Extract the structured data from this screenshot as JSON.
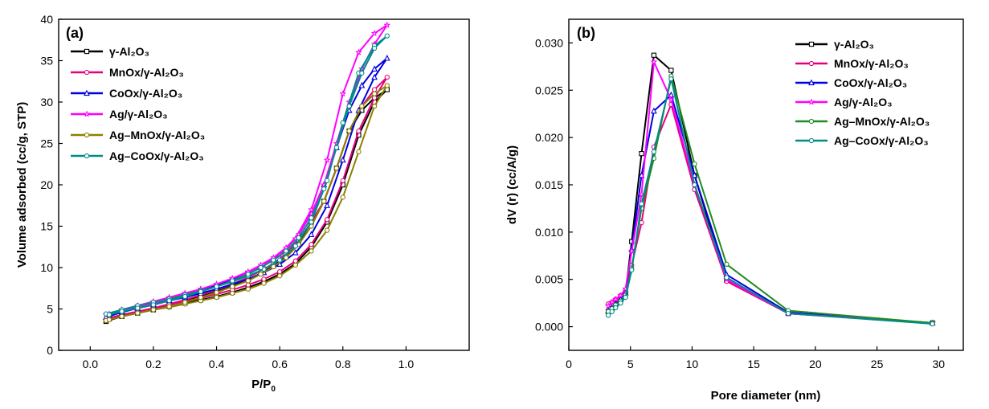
{
  "chart_data": [
    {
      "type": "line",
      "panel_label": "(a)",
      "xlabel": "P/P",
      "xlabel_sub": "0",
      "ylabel": "Volume adsorbed (cc/g, STP)",
      "xlim": [
        -0.1,
        1.2
      ],
      "ylim": [
        0,
        40
      ],
      "xticks": [
        0.0,
        0.2,
        0.4,
        0.6,
        0.8,
        1.0
      ],
      "xtick_labels": [
        "0.0",
        "0.2",
        "0.4",
        "0.6",
        "0.8",
        "1.0"
      ],
      "yticks": [
        0,
        5,
        10,
        15,
        20,
        25,
        30,
        35,
        40
      ],
      "ytick_labels": [
        "0",
        "5",
        "10",
        "15",
        "20",
        "25",
        "30",
        "35",
        "40"
      ],
      "legend_position": "top-left",
      "series": [
        {
          "name": "γ-Al₂O₃",
          "color": "#000000",
          "marker": "square",
          "x": [
            0.05,
            0.1,
            0.15,
            0.2,
            0.25,
            0.3,
            0.35,
            0.4,
            0.45,
            0.5,
            0.55,
            0.6,
            0.65,
            0.7,
            0.75,
            0.8,
            0.85,
            0.9,
            0.94,
            0.9,
            0.86,
            0.82,
            0.78,
            0.74,
            0.7,
            0.66,
            0.62,
            0.58,
            0.54,
            0.5,
            0.45,
            0.4,
            0.35,
            0.3,
            0.25,
            0.2,
            0.15,
            0.1,
            0.06
          ],
          "y": [
            3.5,
            4.1,
            4.5,
            4.9,
            5.3,
            5.7,
            6.1,
            6.5,
            7.0,
            7.6,
            8.3,
            9.2,
            10.5,
            12.5,
            15.5,
            20.0,
            26.0,
            30.0,
            31.5,
            30.5,
            29.0,
            26.5,
            22.0,
            18.0,
            15.5,
            13.0,
            11.3,
            10.2,
            9.3,
            8.5,
            7.8,
            7.1,
            6.5,
            5.9,
            5.4,
            5.0,
            4.6,
            4.2,
            3.8
          ]
        },
        {
          "name": "MnOx/γ-Al₂O₃",
          "color": "#e6007e",
          "marker": "circle",
          "x": [
            0.05,
            0.1,
            0.15,
            0.2,
            0.25,
            0.3,
            0.35,
            0.4,
            0.45,
            0.5,
            0.55,
            0.6,
            0.65,
            0.7,
            0.75,
            0.8,
            0.85,
            0.9,
            0.94,
            0.9,
            0.86,
            0.82,
            0.78,
            0.74,
            0.7,
            0.66,
            0.62,
            0.58,
            0.54,
            0.5,
            0.45,
            0.4,
            0.35,
            0.3,
            0.25,
            0.2,
            0.15,
            0.1,
            0.06
          ],
          "y": [
            3.6,
            4.2,
            4.7,
            5.1,
            5.5,
            5.9,
            6.3,
            6.8,
            7.3,
            7.9,
            8.6,
            9.5,
            10.8,
            12.8,
            15.8,
            20.5,
            26.5,
            30.5,
            33.0,
            31.5,
            29.5,
            26.5,
            22.0,
            18.0,
            15.5,
            13.3,
            11.7,
            10.5,
            9.6,
            8.8,
            8.0,
            7.3,
            6.7,
            6.1,
            5.6,
            5.1,
            4.7,
            4.3,
            3.9
          ]
        },
        {
          "name": "CoOx/γ-Al₂O₃",
          "color": "#0000e0",
          "marker": "triangle",
          "x": [
            0.05,
            0.1,
            0.15,
            0.2,
            0.25,
            0.3,
            0.35,
            0.4,
            0.45,
            0.5,
            0.55,
            0.6,
            0.65,
            0.7,
            0.75,
            0.8,
            0.85,
            0.9,
            0.94,
            0.9,
            0.86,
            0.82,
            0.78,
            0.74,
            0.7,
            0.66,
            0.62,
            0.58,
            0.54,
            0.5,
            0.45,
            0.4,
            0.35,
            0.3,
            0.25,
            0.2,
            0.15,
            0.1,
            0.06
          ],
          "y": [
            4.0,
            4.6,
            5.1,
            5.5,
            6.0,
            6.4,
            6.9,
            7.4,
            8.0,
            8.6,
            9.4,
            10.4,
            11.8,
            14.0,
            17.5,
            23.0,
            29.0,
            33.0,
            35.3,
            34.0,
            32.0,
            29.0,
            24.5,
            20.0,
            16.5,
            14.0,
            12.3,
            11.1,
            10.2,
            9.4,
            8.6,
            7.9,
            7.2,
            6.6,
            6.1,
            5.6,
            5.1,
            4.7,
            4.3
          ]
        },
        {
          "name": "Ag/γ-Al₂O₃",
          "color": "#ff00ff",
          "marker": "star",
          "x": [
            0.05,
            0.1,
            0.15,
            0.2,
            0.25,
            0.3,
            0.35,
            0.4,
            0.45,
            0.5,
            0.55,
            0.6,
            0.65,
            0.7,
            0.75,
            0.8,
            0.85,
            0.9,
            0.94,
            0.9,
            0.86,
            0.82,
            0.78,
            0.74,
            0.7,
            0.66,
            0.62,
            0.58,
            0.54,
            0.5,
            0.45,
            0.4,
            0.35,
            0.3,
            0.25,
            0.2,
            0.15,
            0.1,
            0.06
          ],
          "y": [
            4.3,
            4.9,
            5.4,
            5.9,
            6.4,
            6.9,
            7.4,
            8.0,
            8.7,
            9.4,
            10.3,
            11.5,
            13.5,
            17.0,
            23.0,
            31.0,
            36.0,
            38.3,
            39.3,
            37.0,
            34.0,
            30.0,
            25.0,
            20.0,
            16.5,
            14.0,
            12.4,
            11.2,
            10.3,
            9.5,
            8.7,
            8.0,
            7.4,
            6.8,
            6.2,
            5.7,
            5.2,
            4.8,
            4.4
          ]
        },
        {
          "name": "Ag–MnOx/γ-Al₂O₃",
          "color": "#8b8000",
          "marker": "circle",
          "x": [
            0.05,
            0.1,
            0.15,
            0.2,
            0.25,
            0.3,
            0.35,
            0.4,
            0.45,
            0.5,
            0.55,
            0.6,
            0.65,
            0.7,
            0.75,
            0.8,
            0.85,
            0.9,
            0.94,
            0.9,
            0.86,
            0.82,
            0.78,
            0.74,
            0.7,
            0.66,
            0.62,
            0.58,
            0.54,
            0.5,
            0.45,
            0.4,
            0.35,
            0.3,
            0.25,
            0.2,
            0.15,
            0.1,
            0.06
          ],
          "y": [
            3.6,
            4.1,
            4.5,
            4.9,
            5.2,
            5.6,
            6.0,
            6.4,
            6.9,
            7.4,
            8.1,
            9.0,
            10.3,
            12.0,
            14.5,
            18.5,
            24.0,
            29.5,
            32.0,
            31.0,
            29.5,
            26.5,
            22.0,
            18.0,
            15.0,
            12.8,
            11.2,
            10.1,
            9.2,
            8.4,
            7.7,
            7.0,
            6.4,
            5.8,
            5.3,
            4.9,
            4.5,
            4.1,
            3.7
          ]
        },
        {
          "name": "Ag–CoOx/γ-Al₂O₃",
          "color": "#008b8b",
          "marker": "circle",
          "x": [
            0.05,
            0.1,
            0.15,
            0.2,
            0.25,
            0.3,
            0.35,
            0.4,
            0.45,
            0.5,
            0.55,
            0.6,
            0.65,
            0.7,
            0.75,
            0.8,
            0.85,
            0.9,
            0.94,
            0.9,
            0.86,
            0.82,
            0.78,
            0.74,
            0.7,
            0.66,
            0.62,
            0.58,
            0.54,
            0.5,
            0.45,
            0.4,
            0.35,
            0.3,
            0.25,
            0.2,
            0.15,
            0.1,
            0.06
          ],
          "y": [
            4.4,
            4.9,
            5.4,
            5.8,
            6.2,
            6.7,
            7.2,
            7.7,
            8.3,
            9.0,
            9.8,
            10.9,
            12.6,
            15.5,
            20.5,
            27.5,
            33.5,
            36.8,
            38.0,
            36.5,
            33.5,
            29.5,
            24.5,
            19.5,
            16.0,
            13.6,
            12.0,
            10.9,
            10.0,
            9.2,
            8.4,
            7.7,
            7.1,
            6.5,
            6.0,
            5.5,
            5.1,
            4.7,
            4.3
          ]
        }
      ]
    },
    {
      "type": "line",
      "panel_label": "(b)",
      "xlabel": "Pore diameter (nm)",
      "ylabel": "dV (r) (cc/A/g)",
      "xlim": [
        0,
        32
      ],
      "ylim": [
        -0.0025,
        0.0325
      ],
      "xticks": [
        0,
        5,
        10,
        15,
        20,
        25,
        30
      ],
      "xtick_labels": [
        "0",
        "5",
        "10",
        "15",
        "20",
        "25",
        "30"
      ],
      "yticks": [
        0.0,
        0.005,
        0.01,
        0.015,
        0.02,
        0.025,
        0.03
      ],
      "ytick_labels": [
        "0.000",
        "0.005",
        "0.010",
        "0.015",
        "0.020",
        "0.025",
        "0.030"
      ],
      "legend_position": "top-right",
      "series": [
        {
          "name": "γ-Al₂O₃",
          "color": "#000000",
          "marker": "square",
          "x": [
            3.2,
            3.5,
            3.8,
            4.2,
            4.6,
            5.1,
            5.9,
            6.9,
            8.3,
            10.2,
            12.8,
            17.8,
            29.5
          ],
          "y": [
            0.0016,
            0.0019,
            0.0024,
            0.0029,
            0.0036,
            0.009,
            0.0183,
            0.0287,
            0.0271,
            0.016,
            0.0049,
            0.0014,
            0.0004
          ]
        },
        {
          "name": "MnOx/γ-Al₂O₃",
          "color": "#e6007e",
          "marker": "circle",
          "x": [
            3.2,
            3.5,
            3.8,
            4.2,
            4.6,
            5.1,
            5.9,
            6.9,
            8.3,
            10.2,
            12.8,
            17.8,
            29.5
          ],
          "y": [
            0.0024,
            0.0026,
            0.0029,
            0.0033,
            0.0038,
            0.0065,
            0.011,
            0.019,
            0.0235,
            0.0145,
            0.0048,
            0.0014,
            0.0004
          ]
        },
        {
          "name": "CoOx/γ-Al₂O₃",
          "color": "#0000e0",
          "marker": "triangle",
          "x": [
            3.2,
            3.5,
            3.8,
            4.2,
            4.6,
            5.1,
            5.9,
            6.9,
            8.3,
            10.2,
            12.8,
            17.8,
            29.5
          ],
          "y": [
            0.0017,
            0.002,
            0.0024,
            0.0029,
            0.0036,
            0.0082,
            0.016,
            0.0228,
            0.0245,
            0.016,
            0.0055,
            0.0015,
            0.0004
          ]
        },
        {
          "name": "Ag/γ-Al₂O₃",
          "color": "#ff00ff",
          "marker": "star",
          "x": [
            3.2,
            3.5,
            3.8,
            4.2,
            4.6,
            5.1,
            5.9,
            6.9,
            8.3,
            10.2,
            12.8,
            17.8,
            29.5
          ],
          "y": [
            0.0022,
            0.0026,
            0.0029,
            0.0033,
            0.004,
            0.008,
            0.014,
            0.028,
            0.024,
            0.015,
            0.005,
            0.0014,
            0.0004
          ]
        },
        {
          "name": "Ag–MnOx/γ-Al₂O₃",
          "color": "#1f8b1f",
          "marker": "circle",
          "x": [
            3.2,
            3.5,
            3.8,
            4.2,
            4.6,
            5.1,
            5.9,
            6.9,
            8.3,
            10.2,
            12.8,
            17.8,
            29.5
          ],
          "y": [
            0.0016,
            0.0019,
            0.0023,
            0.0027,
            0.0033,
            0.0062,
            0.0125,
            0.0178,
            0.0265,
            0.0172,
            0.0066,
            0.0017,
            0.0004
          ]
        },
        {
          "name": "Ag–CoOx/γ-Al₂O₃",
          "color": "#008b8b",
          "marker": "circle",
          "x": [
            3.2,
            3.5,
            3.8,
            4.2,
            4.6,
            5.1,
            5.9,
            6.9,
            8.3,
            10.2,
            12.8,
            17.8,
            29.5
          ],
          "y": [
            0.0012,
            0.0016,
            0.002,
            0.0025,
            0.0031,
            0.006,
            0.013,
            0.0185,
            0.0262,
            0.015,
            0.0052,
            0.0014,
            0.0003
          ]
        }
      ]
    }
  ]
}
